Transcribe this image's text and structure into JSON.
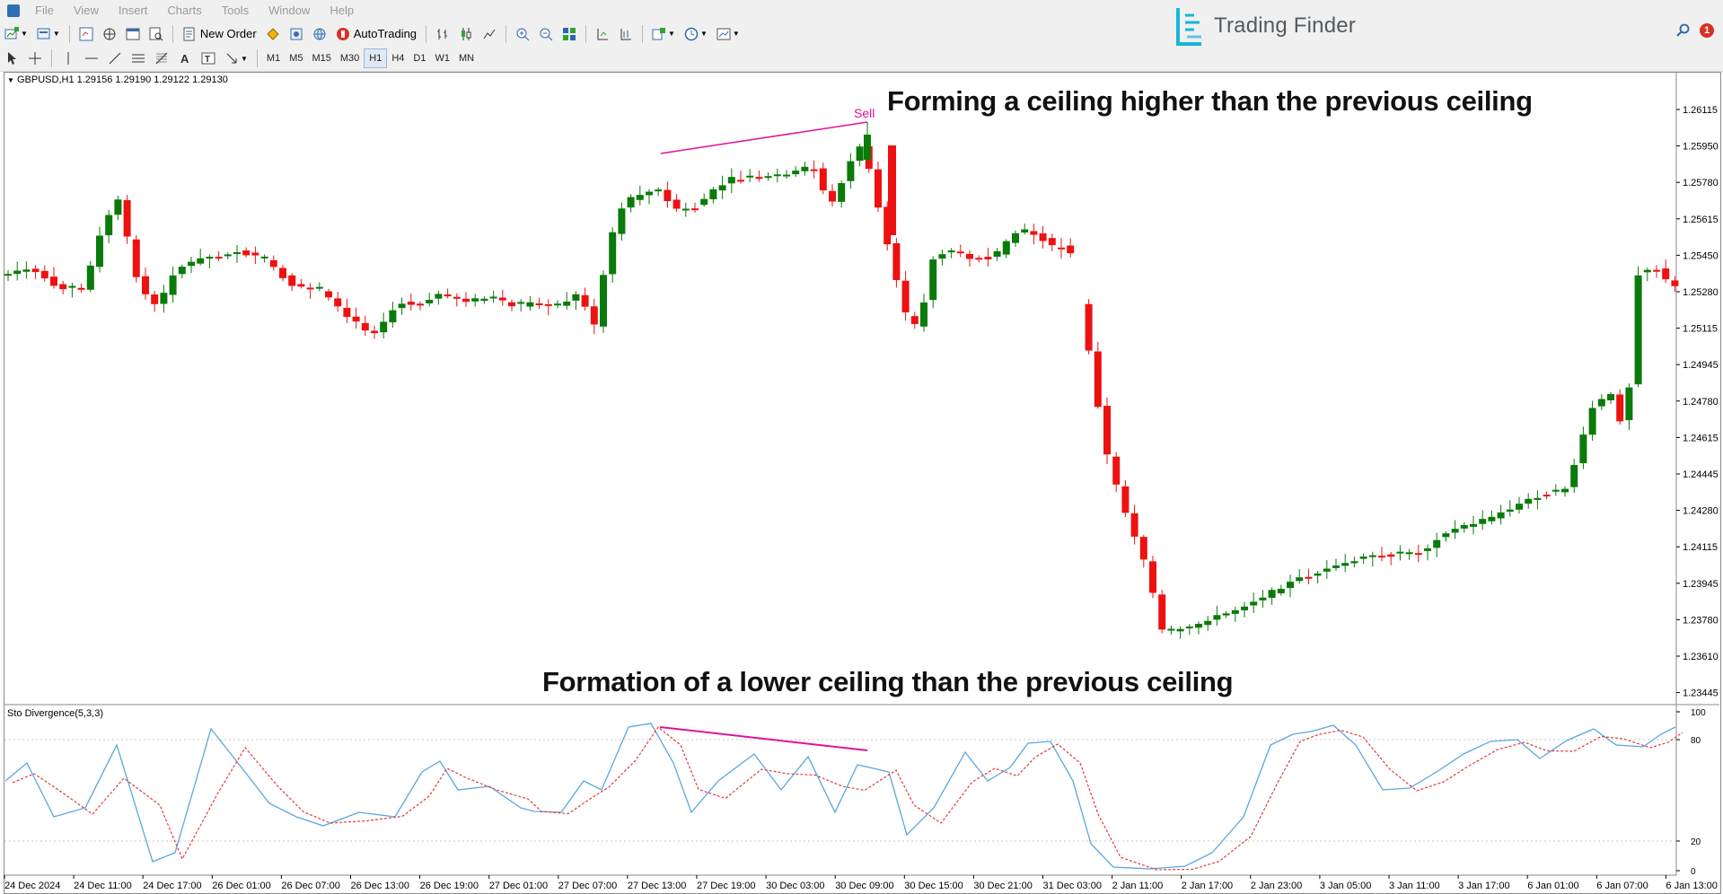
{
  "menu": {
    "items": [
      "File",
      "View",
      "Insert",
      "Charts",
      "Tools",
      "Window",
      "Help"
    ]
  },
  "toolbar": {
    "new_order_label": "New Order",
    "autotrading_label": "AutoTrading",
    "timeframes": [
      "M1",
      "M5",
      "M15",
      "M30",
      "H1",
      "H4",
      "D1",
      "W1",
      "MN"
    ],
    "active_timeframe": "H1"
  },
  "brand": {
    "name": "Trading Finder",
    "accent": "#16b6d8"
  },
  "notifications": {
    "count": "1"
  },
  "chart": {
    "symbol_info": "GBPUSD,H1  1.29156 1.29190 1.29122 1.29130",
    "price_ticks": [
      "1.26115",
      "1.25950",
      "1.25780",
      "1.25615",
      "1.25450",
      "1.25280",
      "1.25115",
      "1.24945",
      "1.24780",
      "1.24615",
      "1.24445",
      "1.24280",
      "1.24115",
      "1.23945",
      "1.23780",
      "1.23610",
      "1.23445"
    ],
    "time_ticks": [
      "24 Dec 2024",
      "24 Dec 11:00",
      "24 Dec 17:00",
      "26 Dec 01:00",
      "26 Dec 07:00",
      "26 Dec 13:00",
      "26 Dec 19:00",
      "27 Dec 01:00",
      "27 Dec 07:00",
      "27 Dec 13:00",
      "27 Dec 19:00",
      "30 Dec 03:00",
      "30 Dec 09:00",
      "30 Dec 15:00",
      "30 Dec 21:00",
      "31 Dec 03:00",
      "2 Jan 11:00",
      "2 Jan 17:00",
      "2 Jan 23:00",
      "3 Jan 05:00",
      "3 Jan 11:00",
      "3 Jan 17:00",
      "6 Jan 01:00",
      "6 Jan 07:00",
      "6 Jan 13:00"
    ],
    "bull_color": "#0a7a0a",
    "bear_color": "#ee1111",
    "divergence_color": "#e0139b",
    "sell_label": "Sell",
    "annotation_top": "Forming a ceiling higher than the previous ceiling",
    "annotation_bottom": "Formation of a lower ceiling than the previous ceiling"
  },
  "indicator": {
    "label": "Sto Divergence(5,3,3)",
    "levels": [
      "100",
      "80",
      "20",
      "0"
    ],
    "main_color": "#5aa7e0",
    "signal_color": "#e23b3b"
  }
}
